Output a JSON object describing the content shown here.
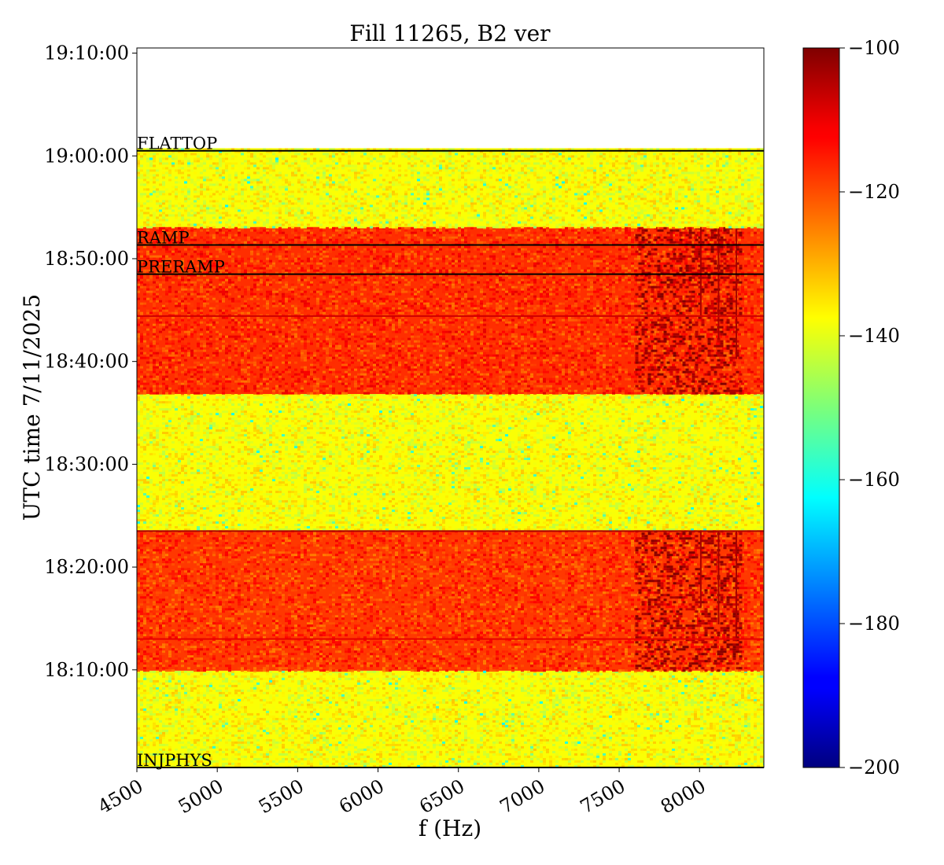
{
  "chart_data": {
    "type": "heatmap",
    "title": "Fill 11265, B2 ver",
    "xlabel": "f (Hz)",
    "ylabel": "UTC time 7/11/2025",
    "xlim": [
      4500,
      8400
    ],
    "ylim": [
      "18:00:30",
      "19:10:30"
    ],
    "x_ticks": [
      {
        "value": 4500,
        "label": "4500"
      },
      {
        "value": 5000,
        "label": "5000"
      },
      {
        "value": 5500,
        "label": "5500"
      },
      {
        "value": 6000,
        "label": "6000"
      },
      {
        "value": 6500,
        "label": "6500"
      },
      {
        "value": 7000,
        "label": "7000"
      },
      {
        "value": 7500,
        "label": "7500"
      },
      {
        "value": 8000,
        "label": "8000"
      }
    ],
    "y_ticks": [
      {
        "value": "18:10:00",
        "label": "18:10:00"
      },
      {
        "value": "18:20:00",
        "label": "18:20:00"
      },
      {
        "value": "18:30:00",
        "label": "18:30:00"
      },
      {
        "value": "18:40:00",
        "label": "18:40:00"
      },
      {
        "value": "18:50:00",
        "label": "18:50:00"
      },
      {
        "value": "19:00:00",
        "label": "19:00:00"
      },
      {
        "value": "19:10:00",
        "label": "19:10:00"
      }
    ],
    "colorbar": {
      "colormap": "jet",
      "range": [
        -200,
        -100
      ],
      "ticks": [
        {
          "value": -100,
          "label": "−100"
        },
        {
          "value": -120,
          "label": "−120"
        },
        {
          "value": -140,
          "label": "−140"
        },
        {
          "value": -160,
          "label": "−160"
        },
        {
          "value": -180,
          "label": "−180"
        },
        {
          "value": -200,
          "label": "−200"
        }
      ]
    },
    "data_end_time": "19:00:45",
    "bands": [
      {
        "start": "18:00:30",
        "end": "18:09:55",
        "level_db": -138
      },
      {
        "start": "18:09:55",
        "end": "18:23:35",
        "level_db": -118
      },
      {
        "start": "18:23:35",
        "end": "18:36:50",
        "level_db": -138
      },
      {
        "start": "18:36:50",
        "end": "18:53:05",
        "level_db": -117
      },
      {
        "start": "18:53:05",
        "end": "19:00:45",
        "level_db": -138
      }
    ],
    "strong_lines": [
      {
        "time": "18:13:00",
        "level_db": -110
      },
      {
        "time": "18:44:25",
        "level_db": -108
      }
    ],
    "high_freq_feature": {
      "f_start": 7600,
      "f_end": 8250,
      "level_db": -104
    },
    "event_markers": [
      {
        "label": "INJPHYS",
        "time": "18:00:30"
      },
      {
        "label": "PRERAMP",
        "time": "18:48:30"
      },
      {
        "label": "RAMP",
        "time": "18:51:20"
      },
      {
        "label": "FLATTOP",
        "time": "19:00:30"
      }
    ],
    "extra_lines": [
      {
        "time": "18:23:30",
        "level_db": -104
      }
    ]
  }
}
